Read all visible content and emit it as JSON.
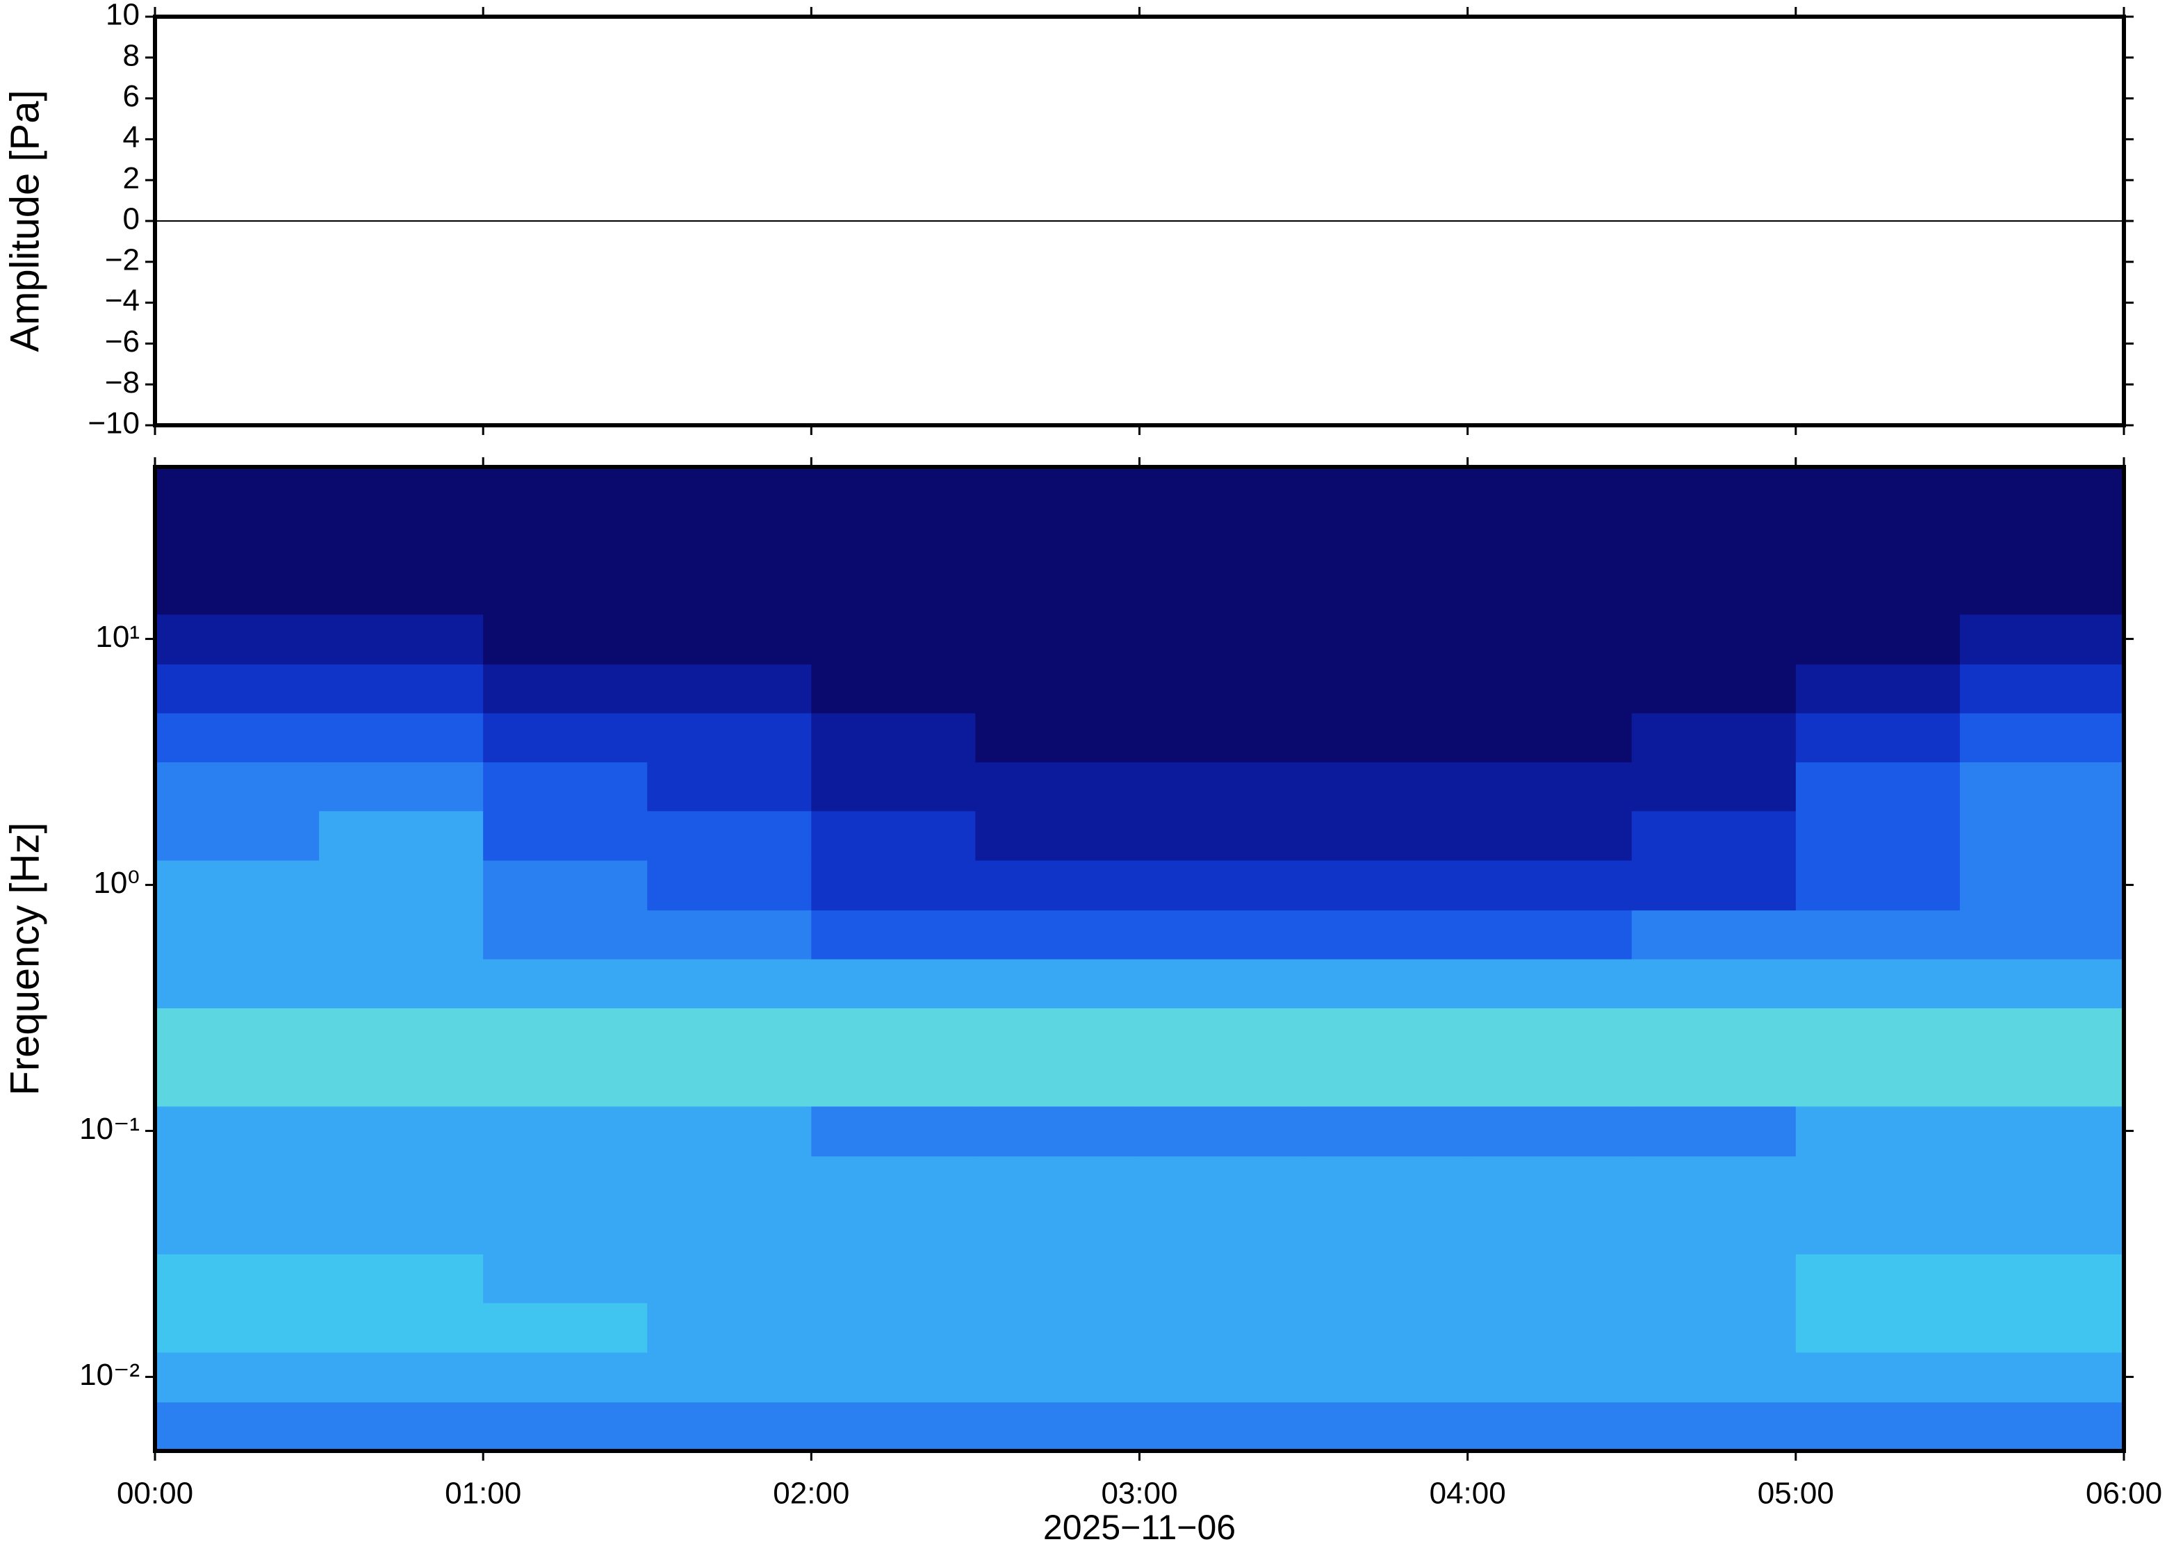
{
  "chart_data": [
    {
      "type": "line",
      "ylabel": "Amplitude [Pa]",
      "x": [
        0,
        60,
        120,
        180,
        240,
        300,
        360
      ],
      "series": [
        {
          "color": "#000000",
          "values": [
            0,
            0,
            0,
            0,
            0,
            0,
            0
          ]
        }
      ],
      "xlim": [
        0,
        360
      ],
      "ylim": [
        -10,
        10
      ],
      "yticks": [
        {
          "value": -10,
          "label": "−10"
        },
        {
          "value": -8,
          "label": "−8"
        },
        {
          "value": -6,
          "label": "−6"
        },
        {
          "value": -4,
          "label": "−4"
        },
        {
          "value": -2,
          "label": "−2"
        },
        0,
        2,
        4,
        6,
        8,
        10
      ]
    },
    {
      "type": "heatmap",
      "ylabel": "Frequency [Hz]",
      "xlabel": "2025−11−06",
      "log_y": true,
      "xlim": [
        0,
        360
      ],
      "ylim": [
        0.005,
        50
      ],
      "xticks": [
        {
          "value": 0,
          "label": "00:00"
        },
        {
          "value": 60,
          "label": "01:00"
        },
        {
          "value": 120,
          "label": "02:00"
        },
        {
          "value": 180,
          "label": "03:00"
        },
        {
          "value": 240,
          "label": "04:00"
        },
        {
          "value": 300,
          "label": "05:00"
        },
        {
          "value": 360,
          "label": "06:00"
        }
      ],
      "yticks": [
        {
          "value": 0.01,
          "label": "10⁻²"
        },
        {
          "value": 0.1,
          "label": "10⁻¹"
        },
        {
          "value": 1,
          "label": "10⁰"
        },
        {
          "value": 10,
          "label": "10¹"
        }
      ],
      "xbins": [
        0,
        30,
        60,
        90,
        120,
        150,
        180,
        210,
        240,
        270,
        300,
        330,
        360
      ],
      "ybins": [
        0.005,
        0.0079,
        0.0126,
        0.02,
        0.0316,
        0.05,
        0.079,
        0.126,
        0.2,
        0.316,
        0.5,
        0.79,
        1.26,
        2,
        3.16,
        5,
        7.9,
        12.6,
        20,
        31.6,
        50
      ],
      "colorscale": [
        "#0a0a6e",
        "#0c1a9c",
        "#1034c8",
        "#1a5ae6",
        "#2a80f0",
        "#38a8f5",
        "#40c4f0",
        "#5cd6e0",
        "#80e0c0",
        "#a8ec9c",
        "#d8f08a"
      ],
      "z": [
        [
          4,
          4,
          4,
          4,
          4,
          4,
          4,
          4,
          4,
          4,
          4,
          4
        ],
        [
          5,
          5,
          5,
          5,
          5,
          5,
          5,
          5,
          5,
          5,
          5,
          5
        ],
        [
          6,
          6,
          6,
          5,
          5,
          5,
          5,
          5,
          5,
          5,
          6,
          6
        ],
        [
          6,
          6,
          5,
          5,
          5,
          5,
          5,
          5,
          5,
          5,
          6,
          6
        ],
        [
          5,
          5,
          5,
          5,
          5,
          5,
          5,
          5,
          5,
          5,
          5,
          5
        ],
        [
          5,
          5,
          5,
          5,
          5,
          5,
          5,
          5,
          5,
          5,
          5,
          5
        ],
        [
          5,
          5,
          5,
          5,
          4,
          4,
          4,
          4,
          4,
          4,
          5,
          5
        ],
        [
          7,
          7,
          7,
          7,
          7,
          7,
          7,
          7,
          7,
          7,
          7,
          7
        ],
        [
          7,
          7,
          7,
          7,
          7,
          7,
          7,
          7,
          7,
          7,
          7,
          7
        ],
        [
          5,
          5,
          5,
          5,
          5,
          5,
          5,
          5,
          5,
          5,
          5,
          5
        ],
        [
          5,
          5,
          4,
          4,
          3,
          3,
          3,
          3,
          3,
          4,
          4,
          4
        ],
        [
          5,
          5,
          4,
          3,
          2,
          2,
          2,
          2,
          2,
          2,
          3,
          4
        ],
        [
          4,
          5,
          3,
          3,
          2,
          1,
          1,
          1,
          1,
          2,
          3,
          4
        ],
        [
          4,
          4,
          3,
          2,
          1,
          1,
          1,
          1,
          1,
          1,
          3,
          4
        ],
        [
          3,
          3,
          2,
          2,
          1,
          0,
          0,
          0,
          0,
          1,
          2,
          3
        ],
        [
          2,
          2,
          1,
          1,
          0,
          0,
          0,
          0,
          0,
          0,
          1,
          2
        ],
        [
          1,
          1,
          0,
          0,
          0,
          0,
          0,
          0,
          0,
          0,
          0,
          1
        ],
        [
          0,
          0,
          0,
          0,
          0,
          0,
          0,
          0,
          0,
          0,
          0,
          0
        ],
        [
          0,
          0,
          0,
          0,
          0,
          0,
          0,
          0,
          0,
          0,
          0,
          0
        ],
        [
          0,
          0,
          0,
          0,
          0,
          0,
          0,
          0,
          0,
          0,
          0,
          0
        ]
      ]
    }
  ]
}
